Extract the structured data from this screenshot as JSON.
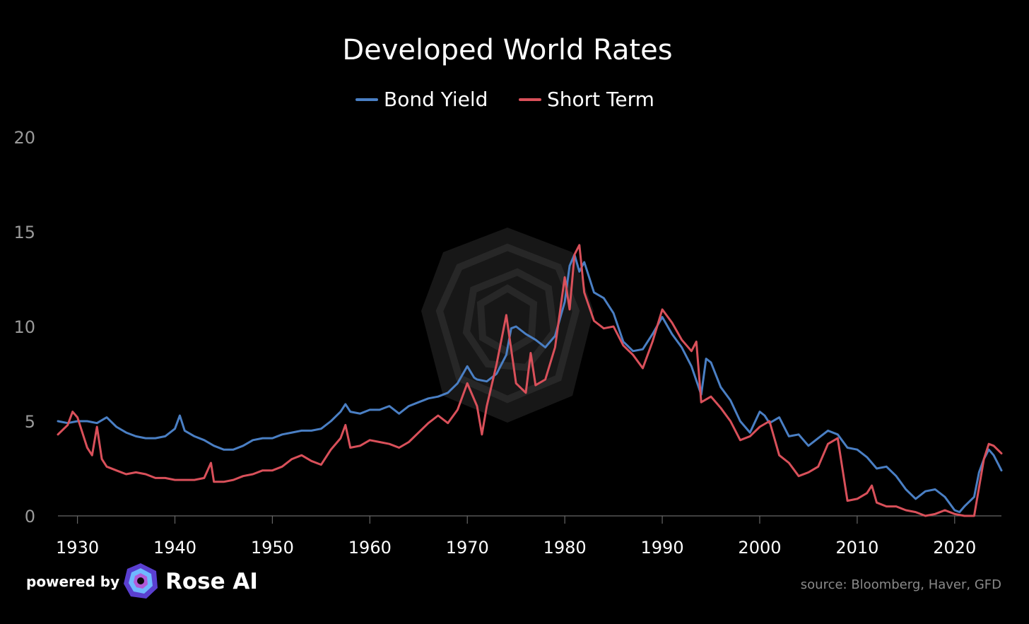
{
  "footer": {
    "powered_by": "powered by",
    "brand": "Rose AI",
    "source": "source: Bloomberg, Haver, GFD"
  },
  "chart_data": {
    "type": "line",
    "title": "Developed World Rates",
    "xlabel": "",
    "ylabel": "",
    "xlim": [
      1928,
      2024.8
    ],
    "ylim": [
      0,
      20
    ],
    "xticks": [
      1930,
      1940,
      1950,
      1960,
      1970,
      1980,
      1990,
      2000,
      2010,
      2020
    ],
    "yticks": [
      0,
      5,
      10,
      15,
      20
    ],
    "grid": false,
    "legend_position": "top-center",
    "background": "#000000",
    "series": [
      {
        "name": "Bond Yield",
        "color": "#4a7fc4",
        "x": [
          1928,
          1929,
          1930,
          1931,
          1932,
          1933,
          1934,
          1935,
          1936,
          1937,
          1938,
          1939,
          1940,
          1940.5,
          1941,
          1942,
          1943,
          1944,
          1945,
          1946,
          1947,
          1948,
          1949,
          1950,
          1951,
          1952,
          1953,
          1954,
          1955,
          1956,
          1957,
          1957.5,
          1958,
          1959,
          1960,
          1961,
          1962,
          1963,
          1964,
          1965,
          1966,
          1967,
          1968,
          1969,
          1970,
          1970.7,
          1971,
          1972,
          1973,
          1974,
          1974.5,
          1975,
          1976,
          1977,
          1978,
          1979,
          1980,
          1980.5,
          1981,
          1981.5,
          1982,
          1983,
          1984,
          1985,
          1986,
          1987,
          1988,
          1989,
          1990,
          1991,
          1992,
          1993,
          1994,
          1994.5,
          1995,
          1996,
          1997,
          1998,
          1999,
          2000,
          2000.5,
          2001,
          2002,
          2003,
          2004,
          2005,
          2006,
          2007,
          2008,
          2009,
          2010,
          2011,
          2012,
          2013,
          2014,
          2015,
          2016,
          2017,
          2018,
          2019,
          2020,
          2020.5,
          2021,
          2022,
          2022.5,
          2023,
          2023.5,
          2024,
          2024.5,
          2024.8
        ],
        "values": [
          5.0,
          4.9,
          5.0,
          5.0,
          4.9,
          5.2,
          4.7,
          4.4,
          4.2,
          4.1,
          4.1,
          4.2,
          4.6,
          5.3,
          4.5,
          4.2,
          4.0,
          3.7,
          3.5,
          3.5,
          3.7,
          4.0,
          4.1,
          4.1,
          4.3,
          4.4,
          4.5,
          4.5,
          4.6,
          5.0,
          5.5,
          5.9,
          5.5,
          5.4,
          5.6,
          5.6,
          5.8,
          5.4,
          5.8,
          6.0,
          6.2,
          6.3,
          6.5,
          7.0,
          7.9,
          7.3,
          7.2,
          7.1,
          7.5,
          8.5,
          9.9,
          10.0,
          9.6,
          9.3,
          8.9,
          9.5,
          11.3,
          13.2,
          13.8,
          12.9,
          13.4,
          11.8,
          11.5,
          10.7,
          9.2,
          8.7,
          8.8,
          9.6,
          10.5,
          9.6,
          8.9,
          7.9,
          6.4,
          8.3,
          8.1,
          6.8,
          6.1,
          5.0,
          4.4,
          5.5,
          5.3,
          4.9,
          5.2,
          4.2,
          4.3,
          3.7,
          4.1,
          4.5,
          4.3,
          3.6,
          3.5,
          3.1,
          2.5,
          2.6,
          2.1,
          1.4,
          0.9,
          1.3,
          1.4,
          1.0,
          0.3,
          0.2,
          0.5,
          1.0,
          2.3,
          3.0,
          3.5,
          3.2,
          2.7,
          2.4
        ]
      },
      {
        "name": "Short Term",
        "color": "#d9505a",
        "x": [
          1928,
          1929,
          1929.5,
          1930,
          1931,
          1931.5,
          1932,
          1932.5,
          1933,
          1934,
          1935,
          1936,
          1937,
          1938,
          1939,
          1940,
          1941,
          1942,
          1943,
          1943.7,
          1944,
          1945,
          1946,
          1947,
          1948,
          1949,
          1950,
          1951,
          1952,
          1953,
          1954,
          1955,
          1956,
          1957,
          1957.5,
          1958,
          1959,
          1960,
          1961,
          1962,
          1963,
          1964,
          1965,
          1966,
          1967,
          1968,
          1969,
          1970,
          1971,
          1971.5,
          1972,
          1973,
          1974,
          1975,
          1976,
          1976.5,
          1977,
          1978,
          1979,
          1980,
          1980.5,
          1981,
          1981.5,
          1982,
          1983,
          1984,
          1985,
          1986,
          1987,
          1988,
          1989,
          1990,
          1991,
          1992,
          1993,
          1993.5,
          1994,
          1995,
          1996,
          1997,
          1998,
          1999,
          2000,
          2001,
          2002,
          2003,
          2004,
          2005,
          2006,
          2007,
          2008,
          2009,
          2010,
          2011,
          2011.5,
          2012,
          2013,
          2014,
          2015,
          2016,
          2017,
          2018,
          2019,
          2020,
          2021,
          2022,
          2022.5,
          2023,
          2023.5,
          2024,
          2024.8
        ],
        "values": [
          4.3,
          4.8,
          5.5,
          5.2,
          3.6,
          3.2,
          4.7,
          3.0,
          2.6,
          2.4,
          2.2,
          2.3,
          2.2,
          2.0,
          2.0,
          1.9,
          1.9,
          1.9,
          2.0,
          2.8,
          1.8,
          1.8,
          1.9,
          2.1,
          2.2,
          2.4,
          2.4,
          2.6,
          3.0,
          3.2,
          2.9,
          2.7,
          3.5,
          4.1,
          4.8,
          3.6,
          3.7,
          4.0,
          3.9,
          3.8,
          3.6,
          3.9,
          4.4,
          4.9,
          5.3,
          4.9,
          5.6,
          7.0,
          5.8,
          4.3,
          5.8,
          8.0,
          10.6,
          7.0,
          6.5,
          8.6,
          6.9,
          7.2,
          8.9,
          12.6,
          10.9,
          13.8,
          14.3,
          11.8,
          10.3,
          9.9,
          10.0,
          9.0,
          8.5,
          7.8,
          9.2,
          10.9,
          10.2,
          9.3,
          8.7,
          9.2,
          6.0,
          6.3,
          5.7,
          5.0,
          4.0,
          4.2,
          4.7,
          5.0,
          3.2,
          2.8,
          2.1,
          2.3,
          2.6,
          3.8,
          4.1,
          0.8,
          0.9,
          1.2,
          1.6,
          0.7,
          0.5,
          0.5,
          0.3,
          0.2,
          0.0,
          0.1,
          0.3,
          0.1,
          0.0,
          0.0,
          1.5,
          3.0,
          3.8,
          3.7,
          3.3
        ]
      }
    ]
  }
}
